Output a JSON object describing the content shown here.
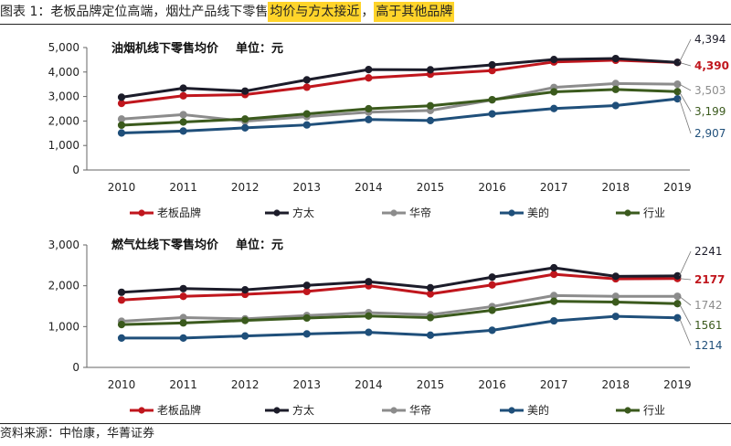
{
  "header": {
    "title_prefix": "图表 1：老板品牌定位高端，烟灶产品线下零售",
    "title_highlight_1": "均价与方太接近",
    "title_sep": "，",
    "title_highlight_2": "高于其他品牌"
  },
  "footer": {
    "source": "资料来源：中怡康，华菁证券"
  },
  "colors": {
    "laoban": "#c0161d",
    "fangtai": "#1c1c2a",
    "huadi": "#8c8c8c",
    "midea": "#1f4f7a",
    "industry": "#3b5a1d",
    "highlight": "#ffd42a"
  },
  "chart_data": [
    {
      "type": "line",
      "title": "油烟机线下零售均价",
      "unit_label": "单位：元",
      "categories": [
        "2010",
        "2011",
        "2012",
        "2013",
        "2014",
        "2015",
        "2016",
        "2017",
        "2018",
        "2019"
      ],
      "ylim": [
        0,
        5000
      ],
      "yticks": [
        0,
        1000,
        2000,
        3000,
        4000,
        5000
      ],
      "ytick_labels": [
        "0",
        "1,000",
        "2,000",
        "3,000",
        "4,000",
        "5,000"
      ],
      "grid": false,
      "legend_position": "bottom",
      "series": [
        {
          "key": "laoban",
          "name": "老板品牌",
          "values": [
            2720,
            3030,
            3080,
            3380,
            3760,
            3910,
            4060,
            4410,
            4480,
            4390
          ],
          "end_label": "4,390"
        },
        {
          "key": "fangtai",
          "name": "方太",
          "values": [
            2970,
            3340,
            3220,
            3680,
            4100,
            4090,
            4290,
            4510,
            4550,
            4394
          ],
          "end_label": "4,394"
        },
        {
          "key": "huadi",
          "name": "华帝",
          "values": [
            2080,
            2260,
            1990,
            2180,
            2360,
            2430,
            2860,
            3370,
            3530,
            3503
          ],
          "end_label": "3,503"
        },
        {
          "key": "midea",
          "name": "美的",
          "values": [
            1510,
            1590,
            1720,
            1840,
            2060,
            2020,
            2290,
            2510,
            2630,
            2907
          ],
          "end_label": "2,907"
        },
        {
          "key": "industry",
          "name": "行业",
          "values": [
            1830,
            1960,
            2080,
            2290,
            2500,
            2620,
            2870,
            3190,
            3290,
            3199
          ],
          "end_label": "3,199"
        }
      ]
    },
    {
      "type": "line",
      "title": "燃气灶线下零售均价",
      "unit_label": "单位：元",
      "categories": [
        "2010",
        "2011",
        "2012",
        "2013",
        "2014",
        "2015",
        "2016",
        "2017",
        "2018",
        "2019"
      ],
      "ylim": [
        0,
        3000
      ],
      "yticks": [
        0,
        1000,
        2000,
        3000
      ],
      "ytick_labels": [
        "0",
        "1,000",
        "2,000",
        "3,000"
      ],
      "grid": false,
      "legend_position": "bottom",
      "series": [
        {
          "key": "laoban",
          "name": "老板品牌",
          "values": [
            1650,
            1740,
            1790,
            1860,
            2000,
            1800,
            2020,
            2280,
            2170,
            2177
          ],
          "end_label": "2177"
        },
        {
          "key": "fangtai",
          "name": "方太",
          "values": [
            1840,
            1930,
            1900,
            2010,
            2100,
            1950,
            2210,
            2440,
            2230,
            2241
          ],
          "end_label": "2241"
        },
        {
          "key": "huadi",
          "name": "华帝",
          "values": [
            1130,
            1220,
            1190,
            1270,
            1340,
            1290,
            1490,
            1760,
            1740,
            1742
          ],
          "end_label": "1742"
        },
        {
          "key": "midea",
          "name": "美的",
          "values": [
            720,
            720,
            770,
            820,
            860,
            790,
            910,
            1140,
            1250,
            1214
          ],
          "end_label": "1214"
        },
        {
          "key": "industry",
          "name": "行业",
          "values": [
            1050,
            1090,
            1150,
            1210,
            1260,
            1220,
            1400,
            1620,
            1600,
            1561
          ],
          "end_label": "1561"
        }
      ]
    }
  ]
}
